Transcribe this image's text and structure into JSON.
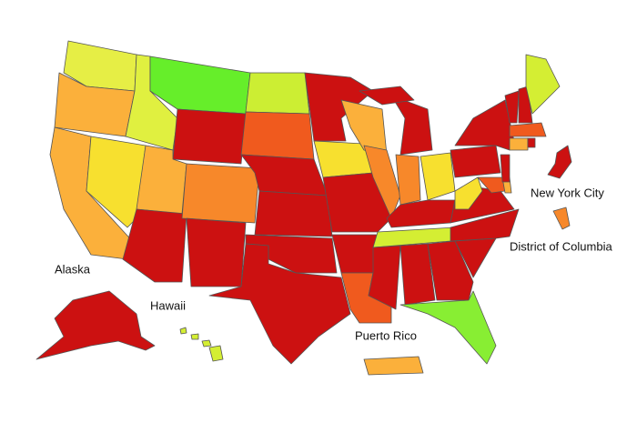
{
  "labels": {
    "alaska": "Alaska",
    "hawaii": "Hawaii",
    "puerto_rico": "Puerto Rico",
    "new_york_city": "New York City",
    "district_of_columbia": "District of Columbia"
  }
}
